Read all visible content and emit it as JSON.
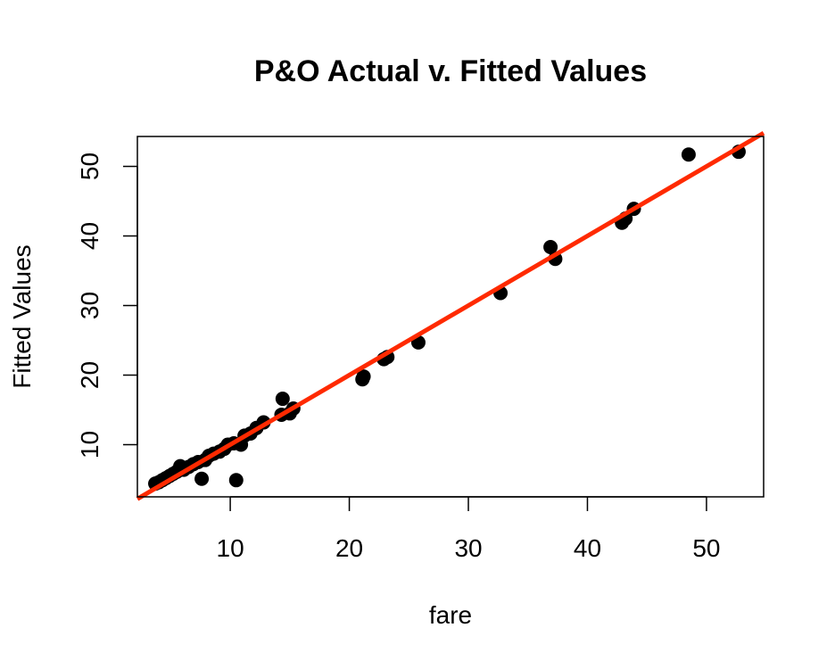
{
  "chart_data": {
    "type": "scatter",
    "title": "P&O Actual v. Fitted Values",
    "xlabel": "fare",
    "ylabel": "Fitted Values",
    "xlim": [
      2.2,
      54.8
    ],
    "ylim": [
      2.5,
      54.3
    ],
    "xticks": [
      10,
      20,
      30,
      40,
      50
    ],
    "yticks": [
      10,
      20,
      30,
      40,
      50
    ],
    "grid": false,
    "point_color": "#000000",
    "line_color": "#ff2a00",
    "reference_line": {
      "slope": 1,
      "intercept": 0
    },
    "points": [
      {
        "x": 3.7,
        "y": 4.4
      },
      {
        "x": 4.0,
        "y": 4.6
      },
      {
        "x": 4.3,
        "y": 4.9
      },
      {
        "x": 4.6,
        "y": 5.2
      },
      {
        "x": 4.9,
        "y": 5.5
      },
      {
        "x": 5.2,
        "y": 5.8
      },
      {
        "x": 5.5,
        "y": 6.1
      },
      {
        "x": 5.8,
        "y": 6.9
      },
      {
        "x": 6.1,
        "y": 6.4
      },
      {
        "x": 6.5,
        "y": 6.8
      },
      {
        "x": 6.9,
        "y": 7.2
      },
      {
        "x": 7.3,
        "y": 7.5
      },
      {
        "x": 7.6,
        "y": 5.1
      },
      {
        "x": 7.9,
        "y": 7.8
      },
      {
        "x": 8.2,
        "y": 8.4
      },
      {
        "x": 8.6,
        "y": 8.7
      },
      {
        "x": 9.1,
        "y": 9.0
      },
      {
        "x": 9.5,
        "y": 9.4
      },
      {
        "x": 9.8,
        "y": 10.0
      },
      {
        "x": 10.3,
        "y": 10.2
      },
      {
        "x": 10.5,
        "y": 4.9
      },
      {
        "x": 10.9,
        "y": 10.0
      },
      {
        "x": 11.2,
        "y": 11.3
      },
      {
        "x": 11.7,
        "y": 11.6
      },
      {
        "x": 12.2,
        "y": 12.4
      },
      {
        "x": 12.8,
        "y": 13.2
      },
      {
        "x": 14.3,
        "y": 14.3
      },
      {
        "x": 14.4,
        "y": 16.6
      },
      {
        "x": 15.0,
        "y": 14.5
      },
      {
        "x": 15.3,
        "y": 15.2
      },
      {
        "x": 21.1,
        "y": 19.4
      },
      {
        "x": 21.2,
        "y": 19.8
      },
      {
        "x": 22.9,
        "y": 22.3
      },
      {
        "x": 23.2,
        "y": 22.6
      },
      {
        "x": 25.8,
        "y": 24.7
      },
      {
        "x": 32.7,
        "y": 31.8
      },
      {
        "x": 36.9,
        "y": 38.4
      },
      {
        "x": 37.3,
        "y": 36.7
      },
      {
        "x": 42.9,
        "y": 41.9
      },
      {
        "x": 43.2,
        "y": 42.5
      },
      {
        "x": 43.9,
        "y": 43.9
      },
      {
        "x": 48.5,
        "y": 51.7
      },
      {
        "x": 52.7,
        "y": 52.1
      }
    ]
  }
}
